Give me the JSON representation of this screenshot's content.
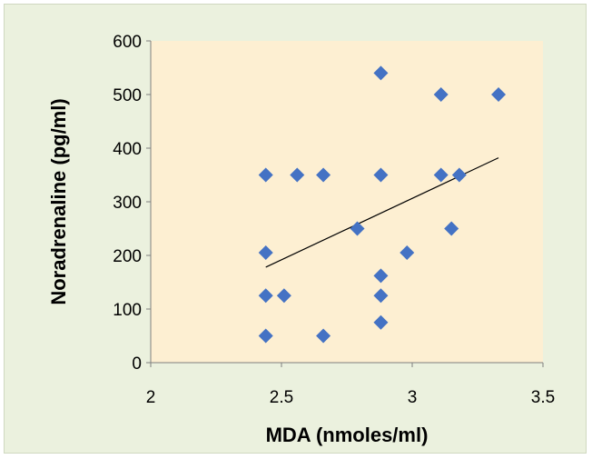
{
  "chart_data": {
    "type": "scatter",
    "title": "",
    "xlabel": "MDA (nmoles/ml)",
    "ylabel": "Noradrenaline (pg/ml)",
    "xlim": [
      2,
      3.5
    ],
    "ylim": [
      0,
      600
    ],
    "x_ticks": [
      "2",
      "2.5",
      "3",
      "3.5"
    ],
    "y_ticks": [
      "0",
      "100",
      "200",
      "300",
      "400",
      "500",
      "600"
    ],
    "grid": false,
    "legend": "none",
    "colors": {
      "plot_background": "#fdefd2",
      "chart_background": "#ebf1de",
      "marker": "#4472c4",
      "trendline": "#000000"
    },
    "points": [
      {
        "x": 2.44,
        "y": 350
      },
      {
        "x": 2.44,
        "y": 205
      },
      {
        "x": 2.44,
        "y": 125
      },
      {
        "x": 2.44,
        "y": 50
      },
      {
        "x": 2.51,
        "y": 125
      },
      {
        "x": 2.56,
        "y": 350
      },
      {
        "x": 2.66,
        "y": 350
      },
      {
        "x": 2.66,
        "y": 50
      },
      {
        "x": 2.79,
        "y": 250
      },
      {
        "x": 2.88,
        "y": 540
      },
      {
        "x": 2.88,
        "y": 350
      },
      {
        "x": 2.88,
        "y": 162
      },
      {
        "x": 2.88,
        "y": 125
      },
      {
        "x": 2.88,
        "y": 75
      },
      {
        "x": 2.98,
        "y": 205
      },
      {
        "x": 3.11,
        "y": 500
      },
      {
        "x": 3.11,
        "y": 350
      },
      {
        "x": 3.15,
        "y": 250
      },
      {
        "x": 3.18,
        "y": 350
      },
      {
        "x": 3.33,
        "y": 500
      }
    ],
    "trendline": {
      "x": [
        2.44,
        3.33
      ],
      "y": [
        178,
        382
      ]
    }
  }
}
